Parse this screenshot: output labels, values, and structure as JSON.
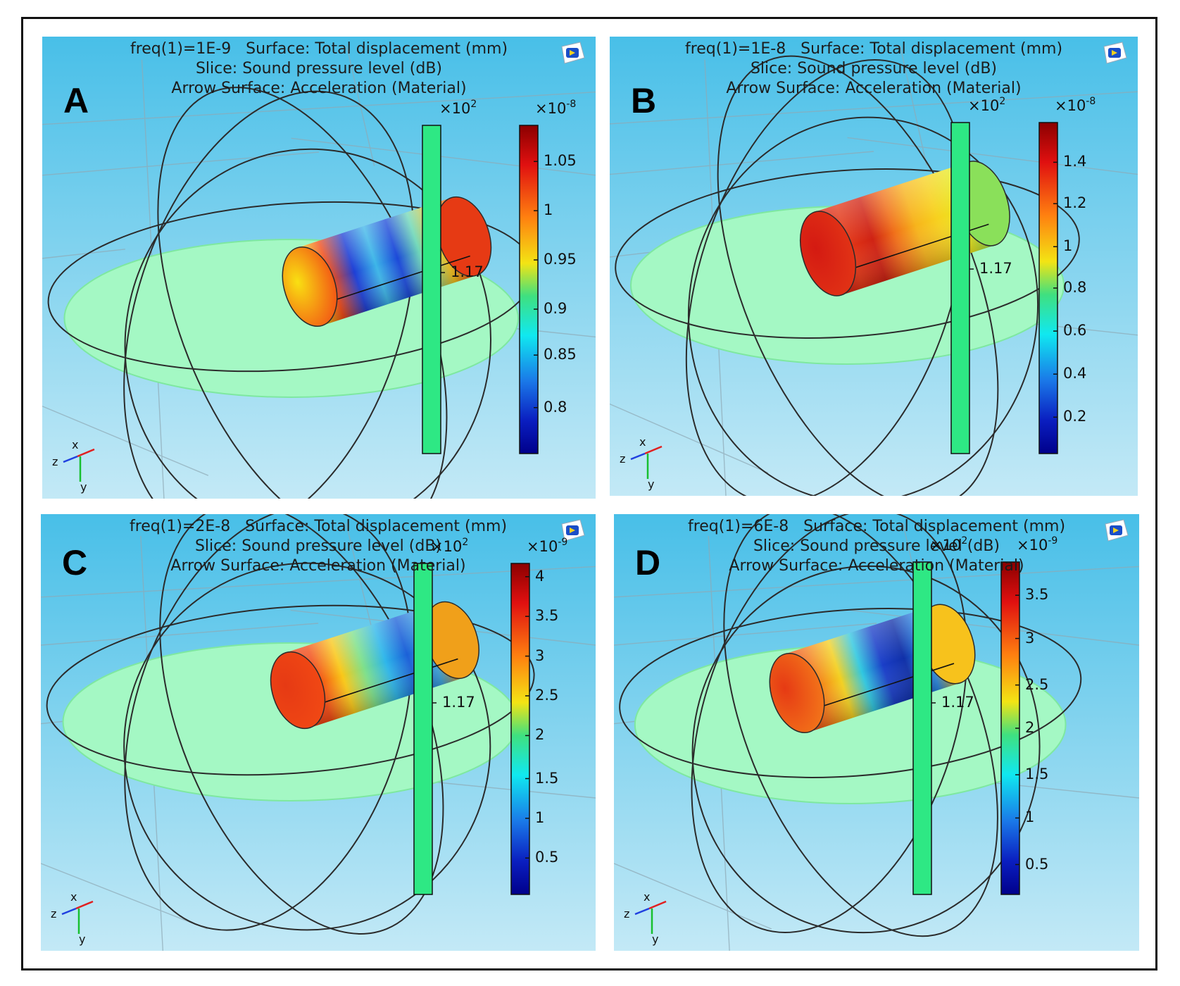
{
  "figure_name": "COMSOL acoustic-structure simulation panels",
  "colors": {
    "background_top": "#48bfe8",
    "background_bottom": "#c3e9f6",
    "slice_plane": "#a4f8c4",
    "slice_bar": "#2ee884",
    "outline": "#2b2b2b"
  },
  "panels": [
    {
      "letter": "A",
      "title_line1": "freq(1)=1E-9   Surface: Total displacement (mm)",
      "title_line2": "Slice: Sound pressure level (dB)",
      "title_line3": "Arrow Surface: Acceleration (Material)",
      "slice_multiplier_base": "×10",
      "slice_multiplier_exp": "2",
      "slice_value": "1.17",
      "surface_multiplier_base": "×10",
      "surface_multiplier_exp": "-8",
      "ticks": [
        "1.05",
        "1",
        "0.95",
        "0.9",
        "0.85",
        "0.8"
      ],
      "tick_fractions": [
        0.11,
        0.26,
        0.41,
        0.56,
        0.7,
        0.86
      ],
      "axis_x": "x",
      "axis_y": "y",
      "axis_z": "z"
    },
    {
      "letter": "B",
      "title_line1": "freq(1)=1E-8   Surface: Total displacement (mm)",
      "title_line2": "Slice: Sound pressure level (dB)",
      "title_line3": "Arrow Surface: Acceleration (Material)",
      "slice_multiplier_base": "×10",
      "slice_multiplier_exp": "2",
      "slice_value": "1.17",
      "surface_multiplier_base": "×10",
      "surface_multiplier_exp": "-8",
      "ticks": [
        "1.4",
        "1.2",
        "1",
        "0.8",
        "0.6",
        "0.4",
        "0.2"
      ],
      "tick_fractions": [
        0.12,
        0.245,
        0.375,
        0.5,
        0.63,
        0.76,
        0.89
      ],
      "axis_x": "x",
      "axis_y": "y",
      "axis_z": "z"
    },
    {
      "letter": "C",
      "title_line1": "freq(1)=2E-8   Surface: Total displacement (mm)",
      "title_line2": "Slice: Sound pressure level (dB)",
      "title_line3": "Arrow Surface: Acceleration (Material)",
      "slice_multiplier_base": "×10",
      "slice_multiplier_exp": "2",
      "slice_value": "1.17",
      "surface_multiplier_base": "×10",
      "surface_multiplier_exp": "-9",
      "ticks": [
        "4",
        "3.5",
        "3",
        "2.5",
        "2",
        "1.5",
        "1",
        "0.5"
      ],
      "tick_fractions": [
        0.04,
        0.16,
        0.28,
        0.4,
        0.52,
        0.65,
        0.77,
        0.89
      ],
      "axis_x": "x",
      "axis_y": "y",
      "axis_z": "z"
    },
    {
      "letter": "D",
      "title_line1": "freq(1)=6E-8   Surface: Total displacement (mm)",
      "title_line2": "Slice: Sound pressure level (dB)",
      "title_line3": "Arrow Surface: Acceleration (Material)",
      "slice_multiplier_base": "×10",
      "slice_multiplier_exp": "2",
      "slice_value": "1.17",
      "surface_multiplier_base": "×10",
      "surface_multiplier_exp": "-9",
      "ticks": [
        "3.5",
        "3",
        "2.5",
        "2",
        "1.5",
        "1",
        "0.5"
      ],
      "tick_fractions": [
        0.1,
        0.23,
        0.37,
        0.5,
        0.64,
        0.77,
        0.91
      ],
      "axis_x": "x",
      "axis_y": "y",
      "axis_z": "z"
    }
  ]
}
